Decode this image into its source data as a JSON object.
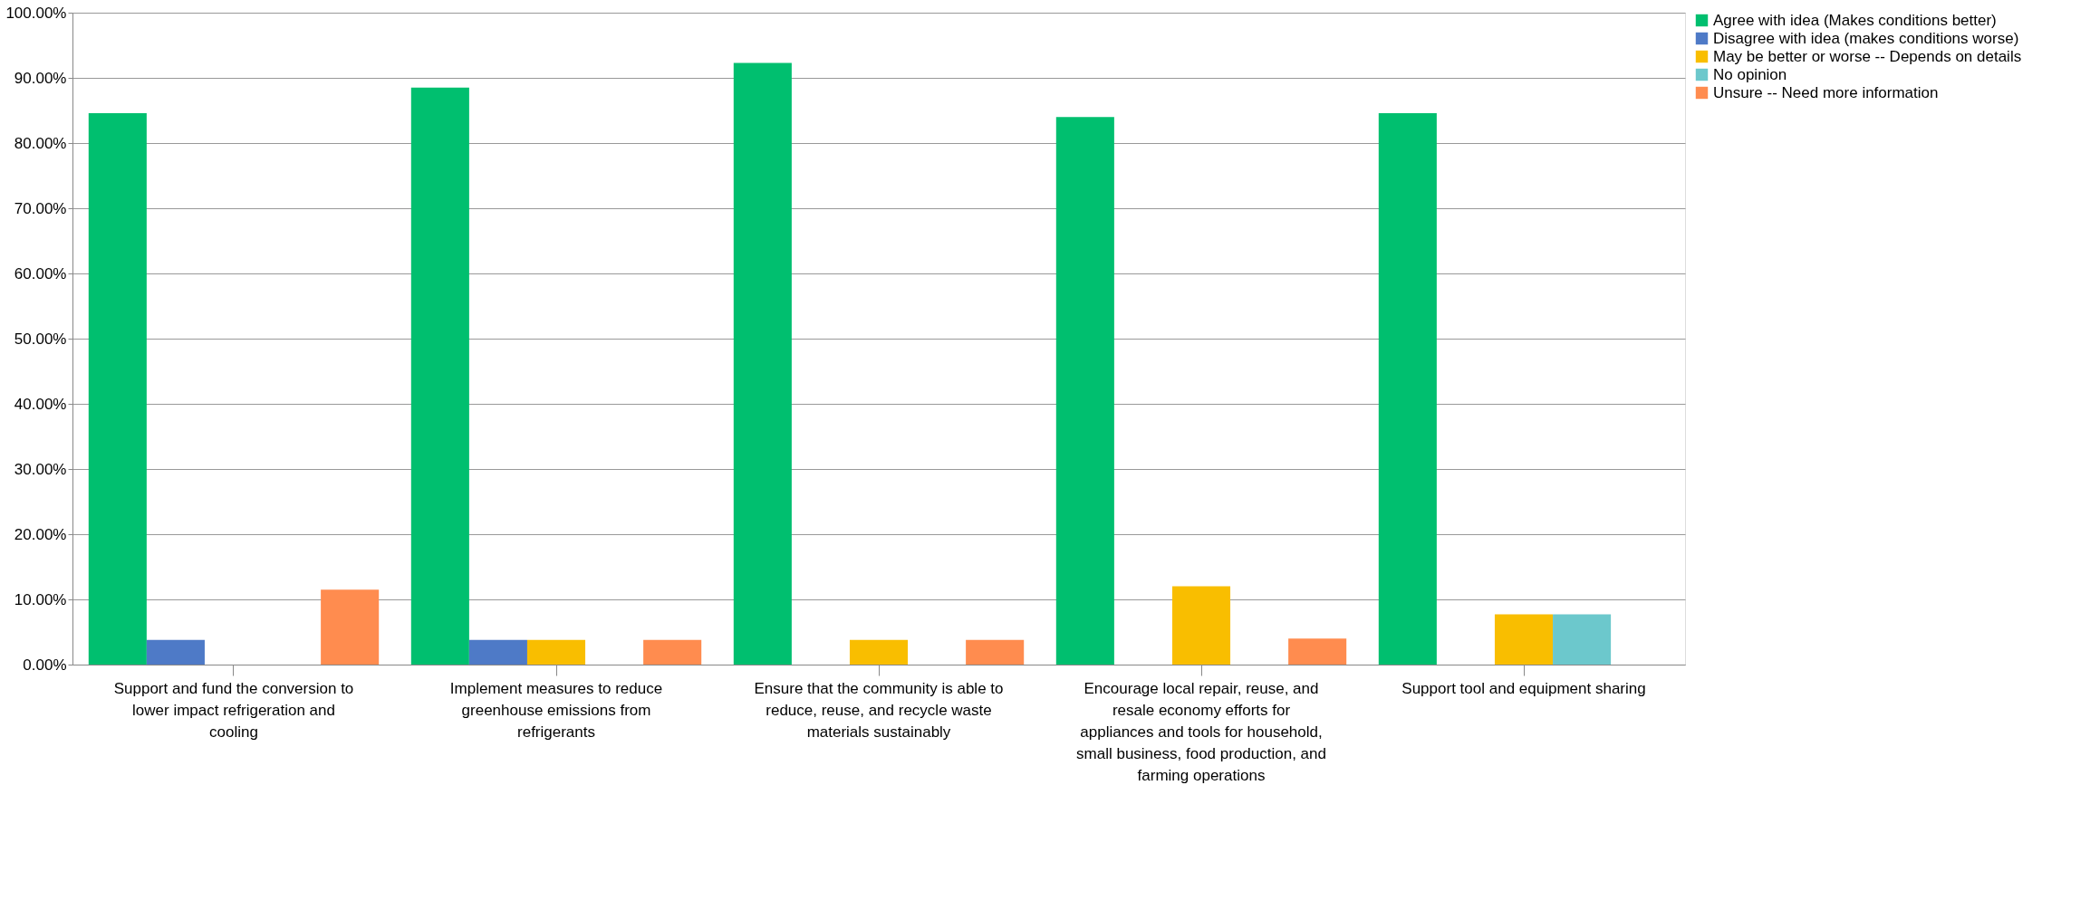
{
  "chart_data": {
    "type": "bar",
    "categories": [
      "Support and fund the conversion to lower impact refrigeration and cooling",
      "Implement measures to reduce greenhouse emissions from refrigerants",
      "Ensure that the community is able to reduce, reuse, and recycle waste materials sustainably",
      "Encourage local repair, reuse, and resale economy efforts for appliances and tools for household, small business, food production, and farming operations",
      "Support tool and equipment sharing"
    ],
    "series": [
      {
        "name": "Agree with idea (Makes conditions better)",
        "color": "#00bf6f",
        "values": [
          84.6,
          88.5,
          92.3,
          84.0,
          84.6
        ]
      },
      {
        "name": "Disagree with idea (makes conditions worse)",
        "color": "#4e7ac7",
        "values": [
          3.8,
          3.8,
          null,
          null,
          null
        ]
      },
      {
        "name": "May be better or worse -- Depends on details",
        "color": "#f9be00",
        "values": [
          null,
          3.8,
          3.8,
          12.0,
          7.7
        ]
      },
      {
        "name": "No opinion",
        "color": "#6cc8cc",
        "values": [
          null,
          null,
          null,
          null,
          7.7
        ]
      },
      {
        "name": "Unsure -- Need more information",
        "color": "#ff8c4f",
        "values": [
          11.5,
          3.8,
          3.8,
          4.0,
          null
        ]
      }
    ],
    "ylim": [
      0,
      100
    ],
    "yticks": [
      {
        "value": 0,
        "label": "0.00%"
      },
      {
        "value": 10,
        "label": "10.00%"
      },
      {
        "value": 20,
        "label": "20.00%"
      },
      {
        "value": 30,
        "label": "30.00%"
      },
      {
        "value": 40,
        "label": "40.00%"
      },
      {
        "value": 50,
        "label": "50.00%"
      },
      {
        "value": 60,
        "label": "60.00%"
      },
      {
        "value": 70,
        "label": "70.00%"
      },
      {
        "value": 80,
        "label": "80.00%"
      },
      {
        "value": 90,
        "label": "90.00%"
      },
      {
        "value": 100,
        "label": "100.00%"
      }
    ],
    "grid": "y",
    "legend": "right"
  }
}
